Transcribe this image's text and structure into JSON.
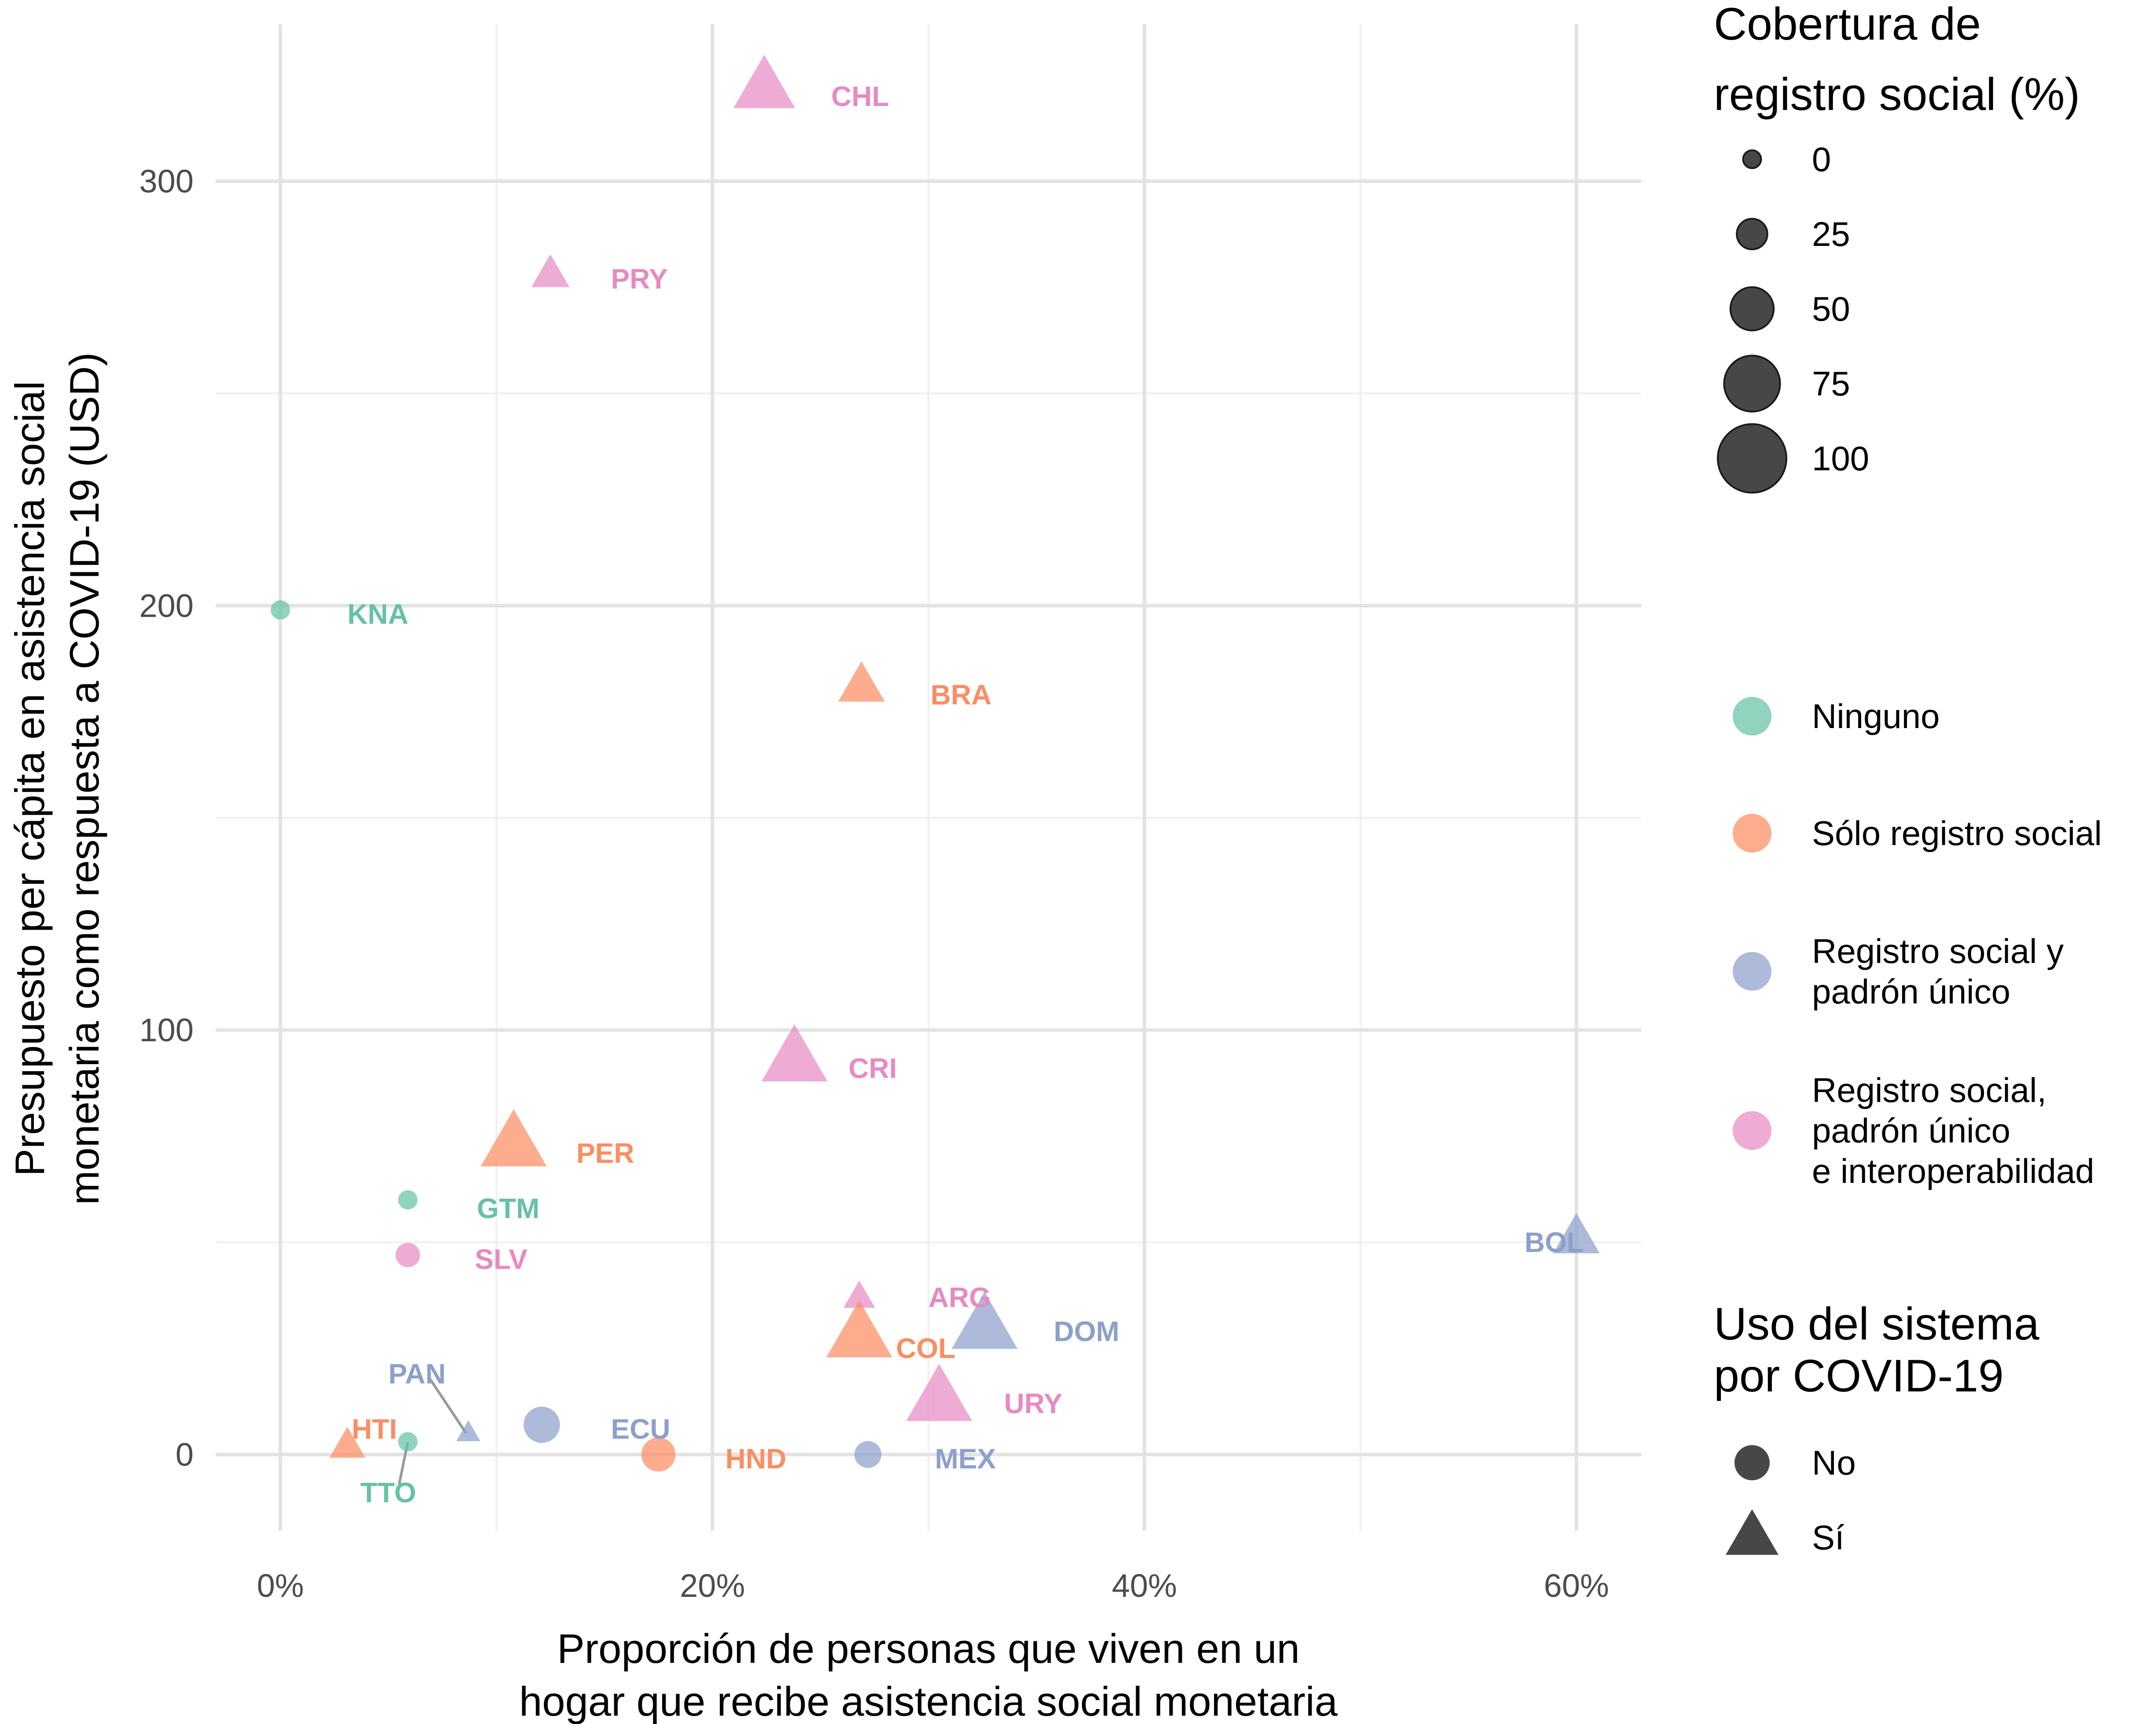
{
  "chart_data": {
    "type": "scatter",
    "title": "",
    "xlabel": [
      "Proporción de personas que viven en un",
      "hogar que recibe asistencia social monetaria"
    ],
    "ylabel": [
      "Presupuesto per cápita en asistencia social",
      "monetaria como respuesta a COVID-19 (USD)"
    ],
    "xlim": [
      -0.03,
      0.63
    ],
    "ylim": [
      -18,
      337
    ],
    "x_ticks": [
      0,
      0.2,
      0.4,
      0.6
    ],
    "x_tick_labels": [
      "0%",
      "20%",
      "40%",
      "60%"
    ],
    "x_minor_ticks": [
      0.1,
      0.3,
      0.5
    ],
    "y_ticks": [
      0,
      100,
      200,
      300
    ],
    "y_tick_labels": [
      "0",
      "100",
      "200",
      "300"
    ],
    "y_minor_ticks": [
      50,
      150,
      250
    ],
    "grid": true,
    "legend_placement": "right",
    "colors": {
      "Ninguno": "#66c2a5",
      "Sólo registro social": "#fc8d62",
      "Registro social y padrón único": "#8da0cb",
      "Registro social, padrón único e interoperabilidad": "#e78ac3"
    },
    "points": [
      {
        "label": "CHL",
        "x": 0.224,
        "y": 322,
        "category": "Registro social, padrón único e interoperabilidad",
        "shape": "triangle",
        "coverage": 90,
        "lx": 0.255,
        "ly": 320
      },
      {
        "label": "PRY",
        "x": 0.125,
        "y": 278,
        "category": "Registro social, padrón único e interoperabilidad",
        "shape": "triangle",
        "coverage": 35,
        "lx": 0.153,
        "ly": 277
      },
      {
        "label": "KNA",
        "x": 0.0,
        "y": 199,
        "category": "Ninguno",
        "shape": "circle",
        "coverage": 0,
        "lx": 0.031,
        "ly": 198
      },
      {
        "label": "BRA",
        "x": 0.269,
        "y": 181,
        "category": "Sólo registro social",
        "shape": "triangle",
        "coverage": 55,
        "lx": 0.301,
        "ly": 179
      },
      {
        "label": "CRI",
        "x": 0.238,
        "y": 93,
        "category": "Registro social, padrón único e interoperabilidad",
        "shape": "triangle",
        "coverage": 100,
        "lx": 0.263,
        "ly": 91
      },
      {
        "label": "PER",
        "x": 0.108,
        "y": 73,
        "category": "Sólo registro social",
        "shape": "triangle",
        "coverage": 100,
        "lx": 0.137,
        "ly": 71
      },
      {
        "label": "GTM",
        "x": 0.059,
        "y": 60,
        "category": "Ninguno",
        "shape": "circle",
        "coverage": 0,
        "lx": 0.091,
        "ly": 58
      },
      {
        "label": "SLV",
        "x": 0.059,
        "y": 47,
        "category": "Registro social, padrón único e interoperabilidad",
        "shape": "circle",
        "coverage": 12,
        "lx": 0.09,
        "ly": 46
      },
      {
        "label": "BOL",
        "x": 0.6,
        "y": 51,
        "category": "Registro social y padrón único",
        "shape": "triangle",
        "coverage": 55,
        "lx": 0.576,
        "ly": 50
      },
      {
        "label": "ARG",
        "x": 0.268,
        "y": 37,
        "category": "Registro social, padrón único e interoperabilidad",
        "shape": "triangle",
        "coverage": 20,
        "lx": 0.3,
        "ly": 37
      },
      {
        "label": "DOM",
        "x": 0.326,
        "y": 30,
        "category": "Registro social y padrón único",
        "shape": "triangle",
        "coverage": 100,
        "lx": 0.358,
        "ly": 29
      },
      {
        "label": "COL",
        "x": 0.268,
        "y": 28,
        "category": "Sólo registro social",
        "shape": "triangle",
        "coverage": 100,
        "lx": 0.285,
        "ly": 25
      },
      {
        "label": "PAN",
        "x": 0.087,
        "y": 5,
        "category": "Registro social y padrón único",
        "shape": "triangle",
        "coverage": 3,
        "lx": 0.05,
        "ly": 19
      },
      {
        "label": "URY",
        "x": 0.305,
        "y": 13,
        "category": "Registro social, padrón único e interoperabilidad",
        "shape": "triangle",
        "coverage": 100,
        "lx": 0.335,
        "ly": 12
      },
      {
        "label": "ECU",
        "x": 0.121,
        "y": 7,
        "category": "Registro social y padrón único",
        "shape": "circle",
        "coverage": 40,
        "lx": 0.153,
        "ly": 6
      },
      {
        "label": "HTI",
        "x": 0.031,
        "y": 2,
        "category": "Sólo registro social",
        "shape": "triangle",
        "coverage": 30,
        "lx": 0.033,
        "ly": 6
      },
      {
        "label": "TTO",
        "x": 0.059,
        "y": 3,
        "category": "Ninguno",
        "shape": "circle",
        "coverage": 0,
        "lx": 0.037,
        "ly": -9
      },
      {
        "label": "HND",
        "x": 0.175,
        "y": 0,
        "category": "Sólo registro social",
        "shape": "circle",
        "coverage": 35,
        "lx": 0.206,
        "ly": -1
      },
      {
        "label": "MEX",
        "x": 0.272,
        "y": 0,
        "category": "Registro social y padrón único",
        "shape": "circle",
        "coverage": 18,
        "lx": 0.303,
        "ly": -1
      }
    ],
    "repel_lines": [
      {
        "from_x": 0.069,
        "from_y": 18,
        "to_x": 0.086,
        "to_y": 5
      },
      {
        "from_x": 0.055,
        "from_y": -7,
        "to_x": 0.059,
        "to_y": 3
      }
    ],
    "legend": {
      "size_title": [
        "Cobertura de",
        "registro social (%)"
      ],
      "size_entries": [
        "0",
        "25",
        "50",
        "75",
        "100"
      ],
      "size_values": [
        0,
        25,
        50,
        75,
        100
      ],
      "color_entries": [
        {
          "label": [
            "Ninguno"
          ],
          "color": "#66c2a5"
        },
        {
          "label": [
            "Sólo registro social"
          ],
          "color": "#fc8d62"
        },
        {
          "label": [
            "Registro social y",
            "padrón único"
          ],
          "color": "#8da0cb"
        },
        {
          "label": [
            "Registro social,",
            "padrón único",
            "e interoperabilidad"
          ],
          "color": "#e78ac3"
        }
      ],
      "shape_title": [
        "Uso del sistema",
        "por COVID-19"
      ],
      "shape_entries": [
        {
          "label": "No",
          "shape": "circle"
        },
        {
          "label": "Sí",
          "shape": "triangle"
        }
      ]
    }
  }
}
